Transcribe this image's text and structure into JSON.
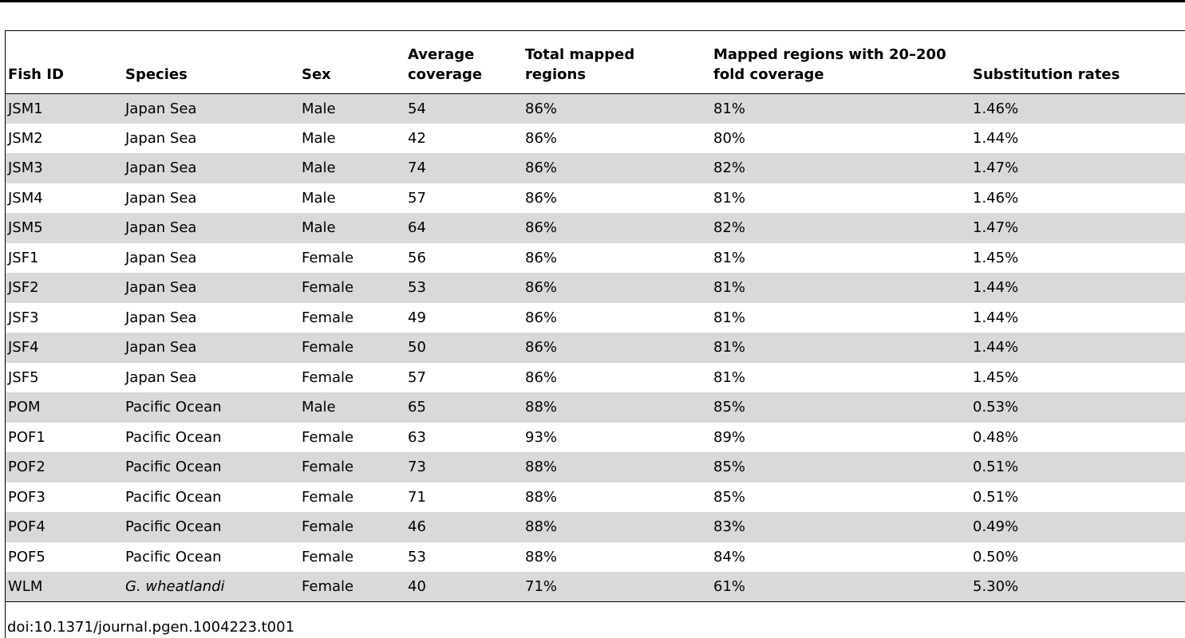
{
  "table": {
    "headers": [
      "Fish ID",
      "Species",
      "Sex",
      "Average coverage",
      "Total mapped regions",
      "Mapped regions with 20–200 fold coverage",
      "Substitution rates"
    ],
    "header_lines": [
      [
        "Fish ID"
      ],
      [
        "Species"
      ],
      [
        "Sex"
      ],
      [
        "Average",
        "coverage"
      ],
      [
        "Total mapped",
        "regions"
      ],
      [
        "Mapped regions with 20–200",
        "fold coverage"
      ],
      [
        "Substitution rates"
      ]
    ],
    "rows": [
      [
        "JSM1",
        "Japan Sea",
        "Male",
        "54",
        "86%",
        "81%",
        "1.46%"
      ],
      [
        "JSM2",
        "Japan Sea",
        "Male",
        "42",
        "86%",
        "80%",
        "1.44%"
      ],
      [
        "JSM3",
        "Japan Sea",
        "Male",
        "74",
        "86%",
        "82%",
        "1.47%"
      ],
      [
        "JSM4",
        "Japan Sea",
        "Male",
        "57",
        "86%",
        "81%",
        "1.46%"
      ],
      [
        "JSM5",
        "Japan Sea",
        "Male",
        "64",
        "86%",
        "82%",
        "1.47%"
      ],
      [
        "JSF1",
        "Japan Sea",
        "Female",
        "56",
        "86%",
        "81%",
        "1.45%"
      ],
      [
        "JSF2",
        "Japan Sea",
        "Female",
        "53",
        "86%",
        "81%",
        "1.44%"
      ],
      [
        "JSF3",
        "Japan Sea",
        "Female",
        "49",
        "86%",
        "81%",
        "1.44%"
      ],
      [
        "JSF4",
        "Japan Sea",
        "Female",
        "50",
        "86%",
        "81%",
        "1.44%"
      ],
      [
        "JSF5",
        "Japan Sea",
        "Female",
        "57",
        "86%",
        "81%",
        "1.45%"
      ],
      [
        "POM",
        "Pacific Ocean",
        "Male",
        "65",
        "88%",
        "85%",
        "0.53%"
      ],
      [
        "POF1",
        "Pacific Ocean",
        "Female",
        "63",
        "93%",
        "89%",
        "0.48%"
      ],
      [
        "POF2",
        "Pacific Ocean",
        "Female",
        "73",
        "88%",
        "85%",
        "0.51%"
      ],
      [
        "POF3",
        "Pacific Ocean",
        "Female",
        "71",
        "88%",
        "85%",
        "0.51%"
      ],
      [
        "POF4",
        "Pacific Ocean",
        "Female",
        "46",
        "88%",
        "83%",
        "0.49%"
      ],
      [
        "POF5",
        "Pacific Ocean",
        "Female",
        "53",
        "88%",
        "84%",
        "0.50%"
      ],
      [
        "WLM",
        "G. wheatlandi",
        "Female",
        "40",
        "71%",
        "61%",
        "5.30%"
      ]
    ],
    "italic_species": [
      "G. wheatlandi"
    ],
    "shade_color": "#d9d9d9"
  },
  "footer": {
    "doi": "doi:10.1371/journal.pgen.1004223.t001"
  }
}
